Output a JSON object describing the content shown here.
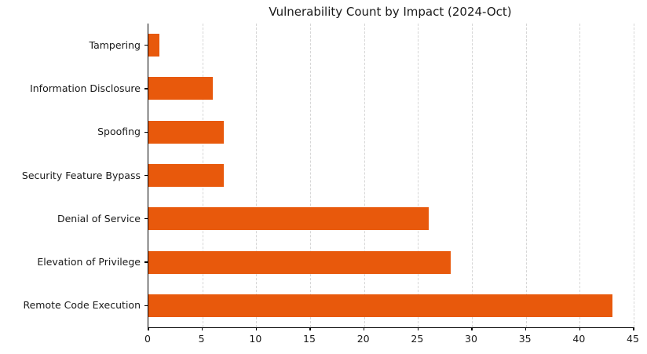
{
  "chart_data": {
    "type": "bar",
    "orientation": "horizontal",
    "title": "Vulnerability Count by Impact (2024-Oct)",
    "categories": [
      "Tampering",
      "Information Disclosure",
      "Spoofing",
      "Security Feature Bypass",
      "Denial of Service",
      "Elevation of Privilege",
      "Remote Code Execution"
    ],
    "values": [
      1,
      6,
      7,
      7,
      26,
      28,
      43
    ],
    "xlabel": "",
    "ylabel": "",
    "xlim": [
      0,
      45
    ],
    "xticks": [
      0,
      5,
      10,
      15,
      20,
      25,
      30,
      35,
      40,
      45
    ],
    "legend": "none",
    "grid": "vertical-dashed",
    "bar_color": "#e8590c",
    "grid_color": "#d6d6d6",
    "spine_color": "#000000",
    "text_color": "#1a1a1a",
    "background": "#ffffff"
  }
}
